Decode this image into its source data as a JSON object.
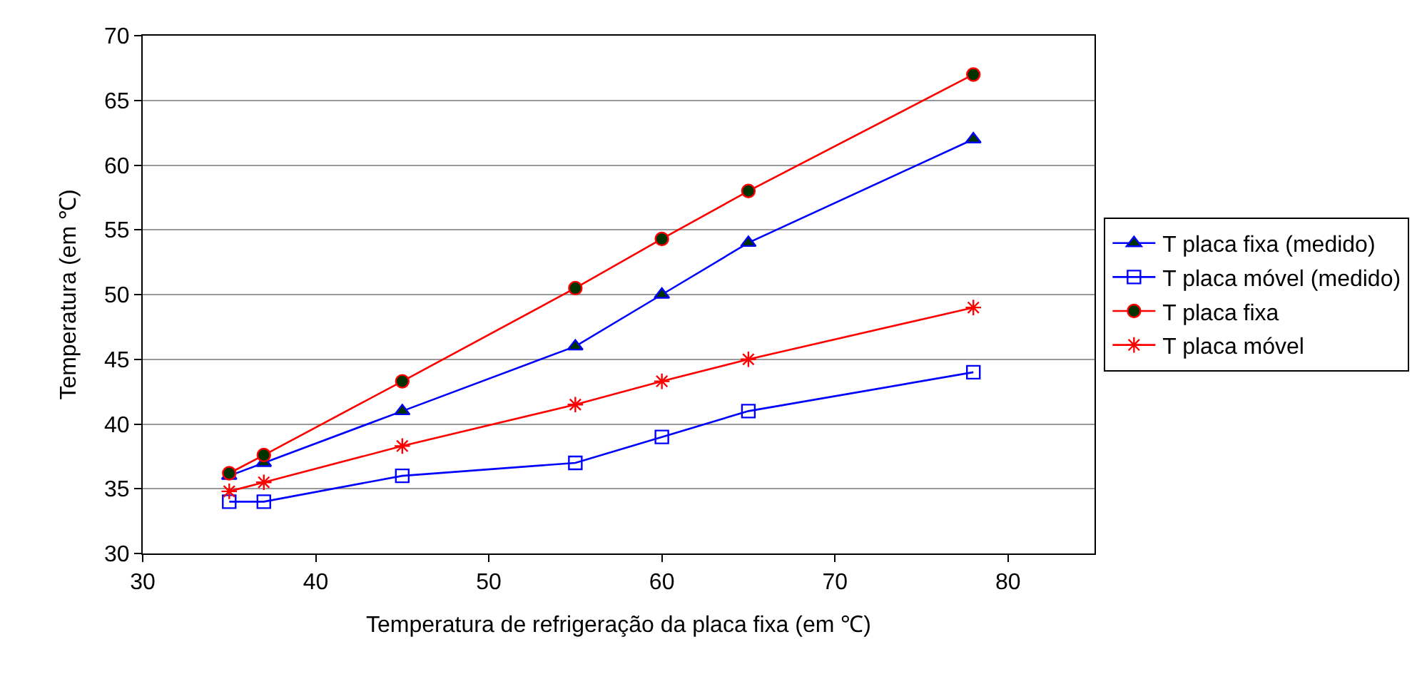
{
  "chart_data": {
    "type": "line",
    "xlabel": "Temperatura de refrigeração da placa fixa (em ℃)",
    "ylabel": "Temperatura (em ℃)",
    "x": [
      35,
      37,
      45,
      55,
      60,
      65,
      78
    ],
    "series": [
      {
        "name": "T placa fixa (medido)",
        "color": "#0000ff",
        "marker": "triangle",
        "values": [
          36,
          37,
          41,
          46,
          50,
          54,
          62
        ]
      },
      {
        "name": "T placa móvel (medido)",
        "color": "#0000ff",
        "marker": "square",
        "values": [
          34,
          34,
          36,
          37,
          39,
          41,
          44
        ]
      },
      {
        "name": "T placa fixa",
        "color": "#ff0000",
        "marker": "circle",
        "values": [
          36.2,
          37.6,
          43.3,
          50.5,
          54.3,
          58,
          67
        ]
      },
      {
        "name": "T placa móvel",
        "color": "#ff0000",
        "marker": "cross",
        "values": [
          34.8,
          35.5,
          38.3,
          41.5,
          43.3,
          45,
          49
        ]
      }
    ],
    "xlim": [
      30,
      85
    ],
    "xticks": [
      30,
      40,
      50,
      60,
      70,
      80
    ],
    "ylim": [
      30,
      70
    ],
    "yticks": [
      30,
      35,
      40,
      45,
      50,
      55,
      60,
      65,
      70
    ],
    "grid": "y",
    "legend": "right",
    "line_style": "solid"
  }
}
